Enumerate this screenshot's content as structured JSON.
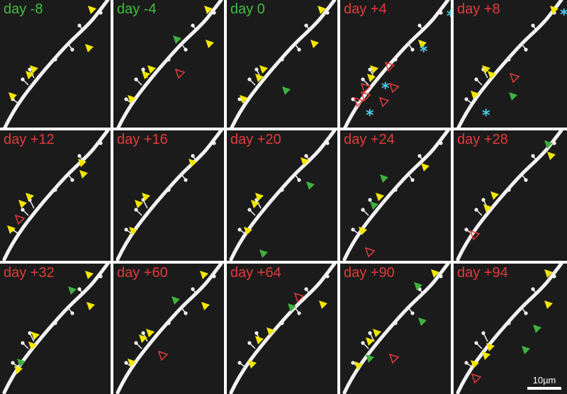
{
  "figure": {
    "panels": [
      {
        "label": "day -8",
        "phase": "pre"
      },
      {
        "label": "day -4",
        "phase": "pre"
      },
      {
        "label": "day 0",
        "phase": "pre"
      },
      {
        "label": "day +4",
        "phase": "post"
      },
      {
        "label": "day +8",
        "phase": "post"
      },
      {
        "label": "day +12",
        "phase": "post"
      },
      {
        "label": "day +16",
        "phase": "post"
      },
      {
        "label": "day +20",
        "phase": "post"
      },
      {
        "label": "day +24",
        "phase": "post"
      },
      {
        "label": "day +28",
        "phase": "post"
      },
      {
        "label": "day +32",
        "phase": "post"
      },
      {
        "label": "day +60",
        "phase": "post"
      },
      {
        "label": "day +64",
        "phase": "post"
      },
      {
        "label": "day +90",
        "phase": "post"
      },
      {
        "label": "day +94",
        "phase": "post"
      }
    ],
    "scale_bar": {
      "label": "10µm"
    },
    "colors": {
      "background": "#1b1b1b",
      "dendrite": "#f2f2f2",
      "pre_label": "#3fbf3f",
      "post_label": "#e23b3b",
      "stable_marker": "#f2e600",
      "new_marker": "#3fb03f",
      "lost_marker": "#e23b3b",
      "asterisk": "#4cc9e8"
    }
  }
}
